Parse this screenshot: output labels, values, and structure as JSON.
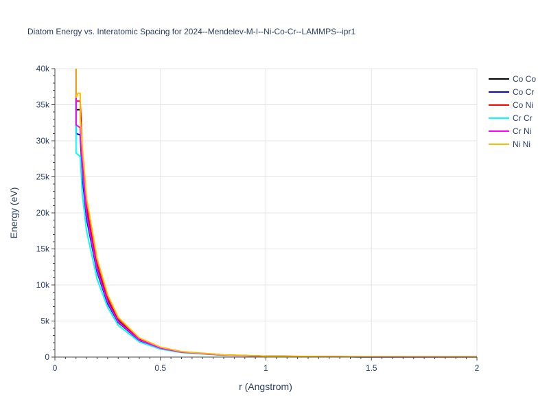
{
  "chart_data": {
    "type": "line",
    "title": "Diatom Energy vs. Interatomic Spacing for 2024--Mendelev-M-I--Ni-Co-Cr--LAMMPS--ipr1",
    "xlabel": "r (Angstrom)",
    "ylabel": "Energy (eV)",
    "xlim": [
      0,
      2
    ],
    "ylim": [
      0,
      40000
    ],
    "xticks": [
      0,
      0.5,
      1,
      1.5,
      2
    ],
    "xtick_labels": [
      "0",
      "0.5",
      "1",
      "1.5",
      "2"
    ],
    "yticks": [
      0,
      5000,
      10000,
      15000,
      20000,
      25000,
      30000,
      35000,
      40000
    ],
    "ytick_labels": [
      "0",
      "5k",
      "10k",
      "15k",
      "20k",
      "25k",
      "30k",
      "35k",
      "40k"
    ],
    "grid": true,
    "legend_position": "top-right",
    "series": [
      {
        "name": "Co Co",
        "color": "#000000",
        "x": [
          0.1,
          0.1,
          0.12,
          0.13,
          0.15,
          0.2,
          0.25,
          0.3,
          0.4,
          0.5,
          0.6,
          0.8,
          1.0,
          1.5,
          2.0
        ],
        "y": [
          40000,
          34300,
          34300,
          27000,
          20000,
          12300,
          7800,
          5000,
          2400,
          1250,
          700,
          280,
          120,
          30,
          10
        ]
      },
      {
        "name": "Co Cr",
        "color": "#0000ff",
        "x": [
          0.1,
          0.1,
          0.12,
          0.13,
          0.15,
          0.2,
          0.25,
          0.3,
          0.4,
          0.5,
          0.6,
          0.8,
          1.0,
          1.5,
          2.0
        ],
        "y": [
          40000,
          31000,
          30800,
          25000,
          19200,
          11800,
          7400,
          4800,
          2300,
          1200,
          680,
          270,
          115,
          28,
          9
        ]
      },
      {
        "name": "Co Ni",
        "color": "#ff0000",
        "x": [
          0.1,
          0.1,
          0.12,
          0.13,
          0.15,
          0.2,
          0.25,
          0.3,
          0.4,
          0.5,
          0.6,
          0.8,
          1.0,
          1.5,
          2.0
        ],
        "y": [
          40000,
          35500,
          35500,
          28500,
          21000,
          13000,
          8200,
          5300,
          2550,
          1330,
          740,
          300,
          130,
          32,
          11
        ]
      },
      {
        "name": "Cr Cr",
        "color": "#00ffff",
        "x": [
          0.1,
          0.1,
          0.12,
          0.13,
          0.15,
          0.2,
          0.25,
          0.3,
          0.4,
          0.5,
          0.6,
          0.8,
          1.0,
          1.5,
          2.0
        ],
        "y": [
          40000,
          28300,
          27800,
          22500,
          17500,
          10800,
          6900,
          4400,
          2100,
          1100,
          620,
          250,
          105,
          25,
          8
        ]
      },
      {
        "name": "Cr Ni",
        "color": "#ff00ff",
        "x": [
          0.1,
          0.1,
          0.12,
          0.13,
          0.15,
          0.2,
          0.25,
          0.3,
          0.4,
          0.5,
          0.6,
          0.8,
          1.0,
          1.5,
          2.0
        ],
        "y": [
          40000,
          32200,
          31800,
          26000,
          19700,
          12100,
          7600,
          4900,
          2350,
          1230,
          690,
          275,
          118,
          29,
          9
        ]
      },
      {
        "name": "Ni Ni",
        "color": "#ffbb00",
        "x": [
          0.1,
          0.1,
          0.11,
          0.12,
          0.12,
          0.13,
          0.15,
          0.2,
          0.25,
          0.3,
          0.4,
          0.5,
          0.6,
          0.8,
          1.0,
          1.5,
          2.0
        ],
        "y": [
          40000,
          36000,
          36600,
          36600,
          33000,
          29000,
          22000,
          13600,
          8600,
          5500,
          2650,
          1380,
          760,
          310,
          135,
          34,
          12
        ]
      }
    ]
  }
}
